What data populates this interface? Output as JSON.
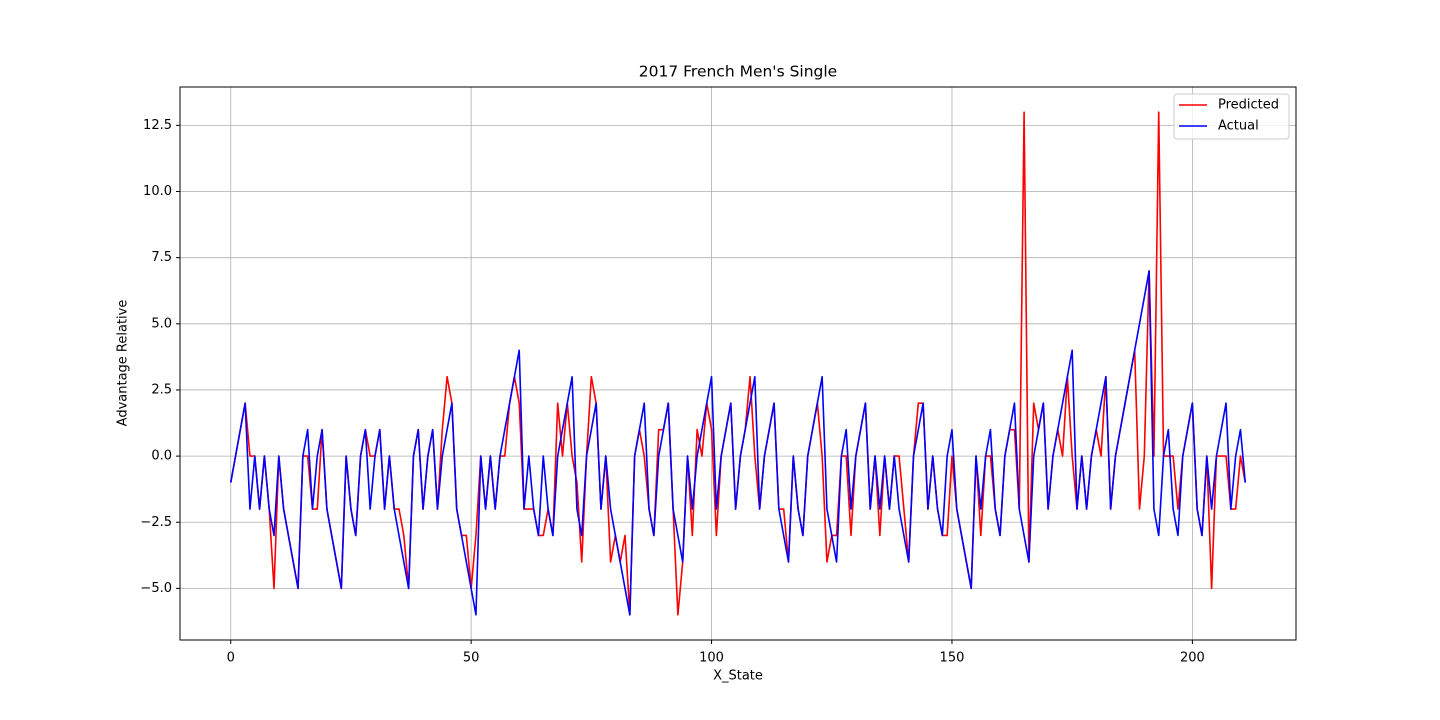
{
  "chart_data": {
    "type": "line",
    "title": "2017 French Men's Single",
    "xlabel": "X_State",
    "ylabel": "Advantage Relative",
    "x": [
      0,
      1,
      2,
      3,
      4,
      5,
      6,
      7,
      8,
      9,
      10,
      11,
      12,
      13,
      14,
      15,
      16,
      17,
      18,
      19,
      20,
      21,
      22,
      23,
      24,
      25,
      26,
      27,
      28,
      29,
      30,
      31,
      32,
      33,
      34,
      35,
      36,
      37,
      38,
      39,
      40,
      41,
      42,
      43,
      44,
      45,
      46,
      47,
      48,
      49,
      50,
      51,
      52,
      53,
      54,
      55,
      56,
      57,
      58,
      59,
      60,
      61,
      62,
      63,
      64,
      65,
      66,
      67,
      68,
      69,
      70,
      71,
      72,
      73,
      74,
      75,
      76,
      77,
      78,
      79,
      80,
      81,
      82,
      83,
      84,
      85,
      86,
      87,
      88,
      89,
      90,
      91,
      92,
      93,
      94,
      95,
      96,
      97,
      98,
      99,
      100,
      101,
      102,
      103,
      104,
      105,
      106,
      107,
      108,
      109,
      110,
      111,
      112,
      113,
      114,
      115,
      116,
      117,
      118,
      119,
      120,
      121,
      122,
      123,
      124,
      125,
      126,
      127,
      128,
      129,
      130,
      131,
      132,
      133,
      134,
      135,
      136,
      137,
      138,
      139,
      140,
      141,
      142,
      143,
      144,
      145,
      146,
      147,
      148,
      149,
      150,
      151,
      152,
      153,
      154,
      155,
      156,
      157,
      158,
      159,
      160,
      161,
      162,
      163,
      164,
      165,
      166,
      167,
      168,
      169,
      170,
      171,
      172,
      173,
      174,
      175,
      176,
      177,
      178,
      179,
      180,
      181,
      182,
      183,
      184,
      185,
      186,
      187,
      188,
      189,
      190,
      191,
      192,
      193,
      194,
      195,
      196,
      197,
      198,
      199,
      200,
      201,
      202,
      203,
      204,
      205,
      206,
      207,
      208,
      209,
      210,
      211
    ],
    "series": [
      {
        "name": "Predicted",
        "color": "#ff0000",
        "values": [
          -1,
          0,
          1,
          2,
          0,
          0,
          -2,
          0,
          -2,
          -5,
          0,
          -2,
          -3,
          -4,
          -5,
          0,
          0,
          -2,
          -2,
          1,
          -2,
          -3,
          -4,
          -5,
          0,
          -2,
          -3,
          0,
          1,
          0,
          0,
          1,
          -2,
          0,
          -2,
          -2,
          -3,
          -5,
          0,
          1,
          -2,
          0,
          1,
          -2,
          1,
          3,
          2,
          -2,
          -3,
          -3,
          -5,
          -3,
          0,
          -2,
          0,
          -2,
          0,
          0,
          2,
          3,
          2,
          -2,
          -2,
          -2,
          -3,
          -3,
          -2,
          -3,
          2,
          0,
          2,
          0,
          -1,
          -4,
          0,
          3,
          2,
          -2,
          0,
          -4,
          -3,
          -4,
          -3,
          -6,
          0,
          1,
          0,
          -2,
          -3,
          1,
          1,
          2,
          -2,
          -6,
          -4,
          0,
          -3,
          1,
          0,
          2,
          1,
          -3,
          0,
          1,
          2,
          -2,
          0,
          1,
          3,
          0,
          -2,
          0,
          1,
          2,
          -2,
          -2,
          -4,
          0,
          -2,
          -3,
          0,
          1,
          2,
          0,
          -4,
          -3,
          -3,
          0,
          0,
          -3,
          0,
          1,
          2,
          -2,
          0,
          -3,
          0,
          -2,
          0,
          0,
          -2,
          -4,
          0,
          2,
          2,
          -2,
          0,
          -2,
          -3,
          -3,
          0,
          -2,
          -3,
          -4,
          -5,
          0,
          -3,
          0,
          0,
          -2,
          -3,
          0,
          1,
          1,
          -2,
          13,
          -4,
          2,
          1,
          2,
          -2,
          0,
          1,
          0,
          3,
          0,
          -2,
          0,
          -2,
          0,
          1,
          0,
          3,
          -2,
          0,
          1,
          2,
          3,
          4,
          -2,
          0,
          7,
          0,
          13,
          0,
          0,
          0,
          -2,
          0,
          1,
          2,
          -2,
          -3,
          0,
          -5,
          0,
          0,
          0,
          -2,
          -2,
          0,
          -1
        ]
      },
      {
        "name": "Actual",
        "color": "#0000ff",
        "values": [
          -1,
          0,
          1,
          2,
          -2,
          0,
          -2,
          0,
          -2,
          -3,
          0,
          -2,
          -3,
          -4,
          -5,
          0,
          1,
          -2,
          0,
          1,
          -2,
          -3,
          -4,
          -5,
          0,
          -2,
          -3,
          0,
          1,
          -2,
          0,
          1,
          -2,
          0,
          -2,
          -3,
          -4,
          -5,
          0,
          1,
          -2,
          0,
          1,
          -2,
          0,
          1,
          2,
          -2,
          -3,
          -4,
          -5,
          -6,
          0,
          -2,
          0,
          -2,
          0,
          1,
          2,
          3,
          4,
          -2,
          0,
          -2,
          -3,
          0,
          -2,
          -3,
          0,
          1,
          2,
          3,
          -2,
          -3,
          0,
          1,
          2,
          -2,
          0,
          -2,
          -3,
          -4,
          -5,
          -6,
          0,
          1,
          2,
          -2,
          -3,
          0,
          1,
          2,
          -2,
          -3,
          -4,
          0,
          -2,
          0,
          1,
          2,
          3,
          -2,
          0,
          1,
          2,
          -2,
          0,
          1,
          2,
          3,
          -2,
          0,
          1,
          2,
          -2,
          -3,
          -4,
          0,
          -2,
          -3,
          0,
          1,
          2,
          3,
          -2,
          -3,
          -4,
          0,
          1,
          -2,
          0,
          1,
          2,
          -2,
          0,
          -2,
          0,
          -2,
          0,
          -2,
          -3,
          -4,
          0,
          1,
          2,
          -2,
          0,
          -2,
          -3,
          0,
          1,
          -2,
          -3,
          -4,
          -5,
          0,
          -2,
          0,
          1,
          -2,
          -3,
          0,
          1,
          2,
          -2,
          -3,
          -4,
          0,
          1,
          2,
          -2,
          0,
          1,
          2,
          3,
          4,
          -2,
          0,
          -2,
          0,
          1,
          2,
          3,
          -2,
          0,
          1,
          2,
          3,
          4,
          5,
          6,
          7,
          -2,
          -3,
          0,
          1,
          -2,
          -3,
          0,
          1,
          2,
          -2,
          -3,
          0,
          -2,
          0,
          1,
          2,
          -2,
          0,
          1,
          -1
        ]
      }
    ],
    "xlim": [
      -10.55,
      221.55
    ],
    "ylim": [
      -6.95,
      13.95
    ],
    "xticks": [
      0,
      50,
      100,
      150,
      200
    ],
    "yticks": [
      {
        "value": -5,
        "label": "−5.0"
      },
      {
        "value": -2.5,
        "label": "−2.5"
      },
      {
        "value": 0,
        "label": "0.0"
      },
      {
        "value": 2.5,
        "label": "2.5"
      },
      {
        "value": 5,
        "label": "5.0"
      },
      {
        "value": 7.5,
        "label": "7.5"
      },
      {
        "value": 10,
        "label": "10.0"
      },
      {
        "value": 12.5,
        "label": "12.5"
      }
    ],
    "grid": true,
    "legend": "upper right"
  }
}
